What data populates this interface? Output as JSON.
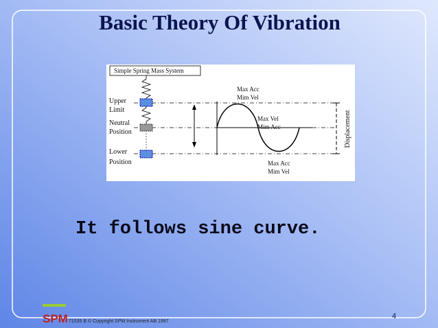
{
  "slide": {
    "title": "Basic Theory  Of  Vibration",
    "diagram": {
      "box_label": "Simple Spring Mass System",
      "upper": [
        "Upper",
        "Limit"
      ],
      "neutral": [
        "Neutral",
        "Position"
      ],
      "lower": [
        "Lower",
        "Position"
      ],
      "peak_note": [
        "Max Acc",
        "Mim Vel"
      ],
      "zero_note": [
        "Max Vel",
        "Mim Acc"
      ],
      "trough_note": [
        "Max Acc",
        "Mim Vel"
      ],
      "axis_label": "Displacement"
    },
    "statement": "It follows sine curve.",
    "footer": {
      "logo": "SPM",
      "copyright": "71535 B  © Copyright SPM Instrument AB 1997",
      "page": "4"
    }
  }
}
